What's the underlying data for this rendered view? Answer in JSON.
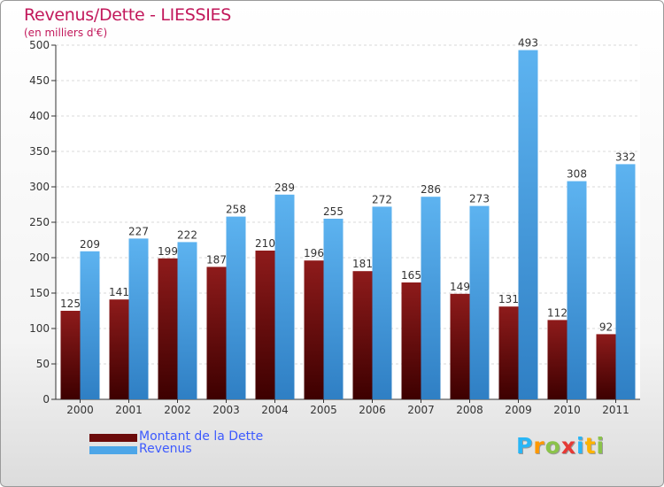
{
  "chart_data": {
    "type": "bar",
    "title": "Revenus/Dette - LIESSIES",
    "subtitle": "(en milliers d'€)",
    "categories": [
      "2000",
      "2001",
      "2002",
      "2003",
      "2004",
      "2005",
      "2006",
      "2007",
      "2008",
      "2009",
      "2010",
      "2011"
    ],
    "series": [
      {
        "name": "Montant de la Dette",
        "color": "#6b0a0a",
        "values": [
          125,
          141,
          199,
          187,
          210,
          196,
          181,
          165,
          149,
          131,
          112,
          92
        ]
      },
      {
        "name": "Revenus",
        "color": "#4da6e8",
        "values": [
          209,
          227,
          222,
          258,
          289,
          255,
          272,
          286,
          273,
          493,
          308,
          332
        ]
      }
    ],
    "yticks": [
      0,
      50,
      100,
      150,
      200,
      250,
      300,
      350,
      400,
      450,
      500
    ],
    "ylim": [
      0,
      500
    ],
    "grid": "horizontal",
    "legend": "bottom-left"
  },
  "logo": [
    "P",
    "r",
    "o",
    "x",
    "i",
    "t",
    "i"
  ]
}
